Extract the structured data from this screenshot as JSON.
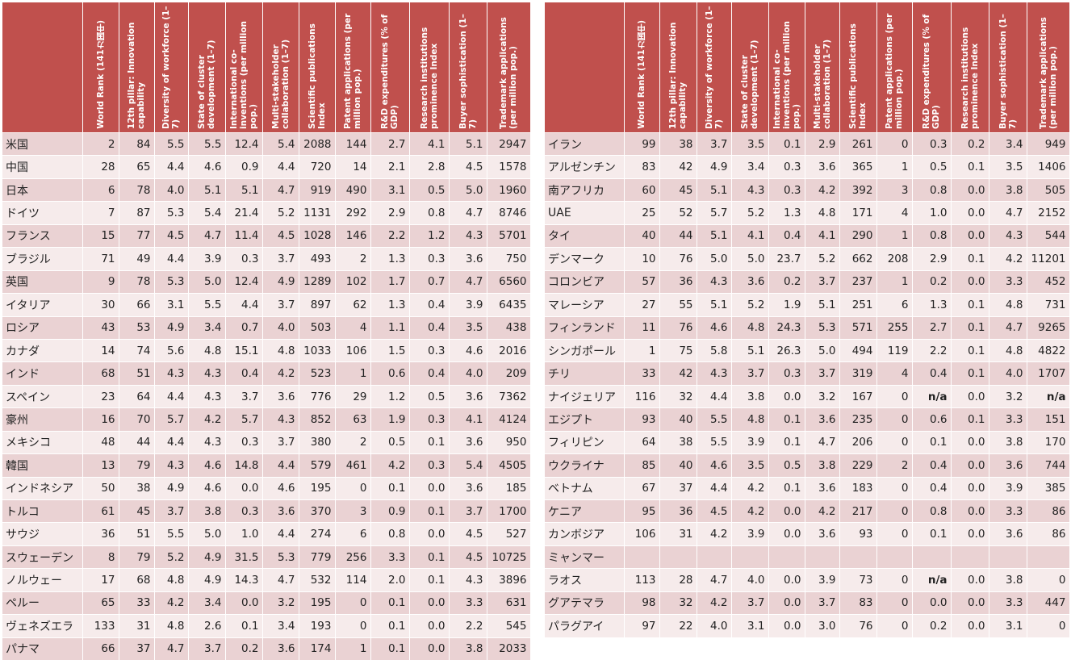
{
  "headers": [
    "World Rank\n(141カ国中)",
    "12th pillar: Innovation capability",
    "Diversity of workforce (1–7)",
    "State of cluster development (1–7)",
    "International co-inventions (per million pop.)",
    "Multi-stakeholder collaboration (1–7)",
    "Scientific publications Index",
    "Patent applications (per million pop.)",
    "R&D expenditures (% of GDP)",
    "Research institutions prominence Index",
    "Buyer sophistication (1–7)",
    "Trademark applications (per million pop.)"
  ],
  "left_table": [
    [
      "米国",
      "2",
      "84",
      "5.5",
      "5.5",
      "12.4",
      "5.4",
      "2088",
      "144",
      "2.7",
      "4.1",
      "5.1",
      "2947"
    ],
    [
      "中国",
      "28",
      "65",
      "4.4",
      "4.6",
      "0.9",
      "4.4",
      "720",
      "14",
      "2.1",
      "2.8",
      "4.5",
      "1578"
    ],
    [
      "日本",
      "6",
      "78",
      "4.0",
      "5.1",
      "5.1",
      "4.7",
      "919",
      "490",
      "3.1",
      "0.5",
      "5.0",
      "1960"
    ],
    [
      "ドイツ",
      "7",
      "87",
      "5.3",
      "5.4",
      "21.4",
      "5.2",
      "1131",
      "292",
      "2.9",
      "0.8",
      "4.7",
      "8746"
    ],
    [
      "フランス",
      "15",
      "77",
      "4.5",
      "4.7",
      "11.4",
      "4.5",
      "1028",
      "146",
      "2.2",
      "1.2",
      "4.3",
      "5701"
    ],
    [
      "ブラジル",
      "71",
      "49",
      "4.4",
      "3.9",
      "0.3",
      "3.7",
      "493",
      "2",
      "1.3",
      "0.3",
      "3.6",
      "750"
    ],
    [
      "英国",
      "9",
      "78",
      "5.3",
      "5.0",
      "12.4",
      "4.9",
      "1289",
      "102",
      "1.7",
      "0.7",
      "4.7",
      "6560"
    ],
    [
      "イタリア",
      "30",
      "66",
      "3.1",
      "5.5",
      "4.4",
      "3.7",
      "897",
      "62",
      "1.3",
      "0.4",
      "3.9",
      "6435"
    ],
    [
      "ロシア",
      "43",
      "53",
      "4.9",
      "3.4",
      "0.7",
      "4.0",
      "503",
      "4",
      "1.1",
      "0.4",
      "3.5",
      "438"
    ],
    [
      "カナダ",
      "14",
      "74",
      "5.6",
      "4.8",
      "15.1",
      "4.8",
      "1033",
      "106",
      "1.5",
      "0.3",
      "4.6",
      "2016"
    ],
    [
      "インド",
      "68",
      "51",
      "4.3",
      "4.3",
      "0.4",
      "4.2",
      "523",
      "1",
      "0.6",
      "0.4",
      "4.0",
      "209"
    ],
    [
      "スペイン",
      "23",
      "64",
      "4.4",
      "4.3",
      "3.7",
      "3.6",
      "776",
      "29",
      "1.2",
      "0.5",
      "3.6",
      "7362"
    ],
    [
      "豪州",
      "16",
      "70",
      "5.7",
      "4.2",
      "5.7",
      "4.3",
      "852",
      "63",
      "1.9",
      "0.3",
      "4.1",
      "4124"
    ],
    [
      "メキシコ",
      "48",
      "44",
      "4.4",
      "4.3",
      "0.3",
      "3.7",
      "380",
      "2",
      "0.5",
      "0.1",
      "3.6",
      "950"
    ],
    [
      "韓国",
      "13",
      "79",
      "4.3",
      "4.6",
      "14.8",
      "4.4",
      "579",
      "461",
      "4.2",
      "0.3",
      "5.4",
      "4505"
    ],
    [
      "インドネシア",
      "50",
      "38",
      "4.9",
      "4.6",
      "0.0",
      "4.6",
      "195",
      "0",
      "0.1",
      "0.0",
      "3.6",
      "185"
    ],
    [
      "トルコ",
      "61",
      "45",
      "3.7",
      "3.8",
      "0.3",
      "3.6",
      "370",
      "3",
      "0.9",
      "0.1",
      "3.7",
      "1700"
    ],
    [
      "サウジ",
      "36",
      "51",
      "5.5",
      "5.0",
      "1.0",
      "4.4",
      "274",
      "6",
      "0.8",
      "0.0",
      "4.5",
      "527"
    ],
    [
      "スウェーデン",
      "8",
      "79",
      "5.2",
      "4.9",
      "31.5",
      "5.3",
      "779",
      "256",
      "3.3",
      "0.1",
      "4.5",
      "10725"
    ],
    [
      "ノルウェー",
      "17",
      "68",
      "4.8",
      "4.9",
      "14.3",
      "4.7",
      "532",
      "114",
      "2.0",
      "0.1",
      "4.3",
      "3896"
    ],
    [
      "ペルー",
      "65",
      "33",
      "4.2",
      "3.4",
      "0.0",
      "3.2",
      "195",
      "0",
      "0.1",
      "0.0",
      "3.3",
      "631"
    ],
    [
      "ヴェネズエラ",
      "133",
      "31",
      "4.8",
      "2.6",
      "0.1",
      "3.4",
      "193",
      "0",
      "0.1",
      "0.0",
      "2.2",
      "545"
    ],
    [
      "パナマ",
      "66",
      "37",
      "4.7",
      "3.7",
      "0.2",
      "3.6",
      "174",
      "1",
      "0.1",
      "0.0",
      "3.8",
      "2033"
    ]
  ],
  "right_table": [
    [
      "イラン",
      "99",
      "38",
      "3.7",
      "3.5",
      "0.1",
      "2.9",
      "261",
      "0",
      "0.3",
      "0.2",
      "3.4",
      "949"
    ],
    [
      "アルゼンチン",
      "83",
      "42",
      "4.9",
      "3.4",
      "0.3",
      "3.6",
      "365",
      "1",
      "0.5",
      "0.1",
      "3.5",
      "1406"
    ],
    [
      "南アフリカ",
      "60",
      "45",
      "5.1",
      "4.3",
      "0.3",
      "4.2",
      "392",
      "3",
      "0.8",
      "0.0",
      "3.8",
      "505"
    ],
    [
      "UAE",
      "25",
      "52",
      "5.7",
      "5.2",
      "1.3",
      "4.8",
      "171",
      "4",
      "1.0",
      "0.0",
      "4.7",
      "2152"
    ],
    [
      "タイ",
      "40",
      "44",
      "5.1",
      "4.1",
      "0.4",
      "4.1",
      "290",
      "1",
      "0.8",
      "0.0",
      "4.3",
      "544"
    ],
    [
      "デンマーク",
      "10",
      "76",
      "5.0",
      "5.0",
      "23.7",
      "5.2",
      "662",
      "208",
      "2.9",
      "0.1",
      "4.2",
      "11201"
    ],
    [
      "コロンビア",
      "57",
      "36",
      "4.3",
      "3.6",
      "0.2",
      "3.7",
      "237",
      "1",
      "0.2",
      "0.0",
      "3.3",
      "452"
    ],
    [
      "マレーシア",
      "27",
      "55",
      "5.1",
      "5.2",
      "1.9",
      "5.1",
      "251",
      "6",
      "1.3",
      "0.1",
      "4.8",
      "731"
    ],
    [
      "フィンランド",
      "11",
      "76",
      "4.6",
      "4.8",
      "24.3",
      "5.3",
      "571",
      "255",
      "2.7",
      "0.1",
      "4.7",
      "9265"
    ],
    [
      "シンガポール",
      "1",
      "75",
      "5.8",
      "5.1",
      "26.3",
      "5.0",
      "494",
      "119",
      "2.2",
      "0.1",
      "4.8",
      "4822"
    ],
    [
      "チリ",
      "33",
      "42",
      "4.3",
      "3.7",
      "0.3",
      "3.7",
      "319",
      "4",
      "0.4",
      "0.1",
      "4.0",
      "1707"
    ],
    [
      "ナイジェリア",
      "116",
      "32",
      "4.4",
      "3.8",
      "0.0",
      "3.2",
      "167",
      "0",
      "n/a",
      "0.0",
      "3.2",
      "n/a"
    ],
    [
      "エジプト",
      "93",
      "40",
      "5.5",
      "4.8",
      "0.1",
      "3.6",
      "235",
      "0",
      "0.6",
      "0.1",
      "3.3",
      "151"
    ],
    [
      "フィリピン",
      "64",
      "38",
      "5.5",
      "3.9",
      "0.1",
      "4.7",
      "206",
      "0",
      "0.1",
      "0.0",
      "3.8",
      "170"
    ],
    [
      "ウクライナ",
      "85",
      "40",
      "4.6",
      "3.5",
      "0.5",
      "3.8",
      "229",
      "2",
      "0.4",
      "0.0",
      "3.6",
      "744"
    ],
    [
      "ベトナム",
      "67",
      "37",
      "4.4",
      "4.2",
      "0.1",
      "3.6",
      "183",
      "0",
      "0.4",
      "0.0",
      "3.9",
      "385"
    ],
    [
      "ケニア",
      "95",
      "36",
      "4.5",
      "4.2",
      "0.0",
      "4.2",
      "217",
      "0",
      "0.8",
      "0.0",
      "3.3",
      "86"
    ],
    [
      "カンボジア",
      "106",
      "31",
      "4.2",
      "3.9",
      "0.0",
      "3.6",
      "93",
      "0",
      "0.1",
      "0.0",
      "3.6",
      "86"
    ],
    [
      "ミャンマー",
      "",
      "",
      "",
      "",
      "",
      "",
      "",
      "",
      "",
      "",
      "",
      ""
    ],
    [
      "ラオス",
      "113",
      "28",
      "4.7",
      "4.0",
      "0.0",
      "3.9",
      "73",
      "0",
      "n/a",
      "0.0",
      "3.8",
      "0"
    ],
    [
      "グアテマラ",
      "98",
      "32",
      "4.2",
      "3.7",
      "0.0",
      "3.7",
      "83",
      "0",
      "0.0",
      "0.0",
      "3.3",
      "447"
    ],
    [
      "パラグアイ",
      "97",
      "22",
      "4.0",
      "3.1",
      "0.0",
      "3.0",
      "76",
      "0",
      "0.2",
      "0.0",
      "3.1",
      "0"
    ]
  ]
}
